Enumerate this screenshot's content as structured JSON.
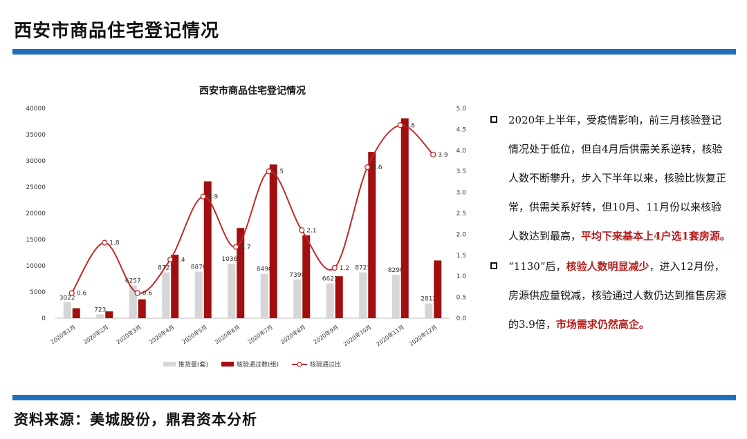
{
  "page": {
    "title": "西安市商品住宅登记情况",
    "source": "资料来源：美城股份，鼎君资本分析",
    "accent": "#1f6fbf"
  },
  "notes": [
    {
      "parts": [
        {
          "text": "2020年上半年，受疫情影响，前三月核验登记情况处于低位，但自4月后供需关系逆转，核验人数不断攀升，步入下半年以来，核验比恢复正常，供需关系好转，但10月、11月份以来核验人数达到最高，",
          "hl": false
        },
        {
          "text": "平均下来基本上4户选1套房源。",
          "hl": true
        }
      ]
    },
    {
      "parts": [
        {
          "text": "“1130”后，",
          "hl": false
        },
        {
          "text": "核验人数明显减少",
          "hl": true
        },
        {
          "text": "，进入12月份，房源供应量锐减，核验通过人数仍达到推售房源的3.9倍，",
          "hl": false
        },
        {
          "text": "市场需求仍然高企。",
          "hl": true
        }
      ]
    }
  ],
  "chart_data": {
    "type": "bar",
    "title": "西安市商品住宅登记情况",
    "categories": [
      "2020年1月",
      "2020年2月",
      "2020年3月",
      "2020年4月",
      "2020年5月",
      "2020年6月",
      "2020年7月",
      "2020年8月",
      "2020年9月",
      "2020年10月",
      "2020年11月",
      "2020年12月"
    ],
    "ylim": [
      0,
      40000
    ],
    "yticks": [
      "0",
      "5000",
      "10000",
      "15000",
      "20000",
      "25000",
      "30000",
      "35000",
      "40000"
    ],
    "y2lim": [
      0,
      5.0
    ],
    "y2ticks": [
      "0.0",
      "0.5",
      "1.0",
      "1.5",
      "2.0",
      "2.5",
      "3.0",
      "3.5",
      "4.0",
      "4.5",
      "5.0"
    ],
    "series": [
      {
        "name": "推货量(套)",
        "kind": "bar",
        "color": "#d6d6d6",
        "values": [
          3022,
          723,
          6257,
          8723,
          8870,
          10362,
          8490,
          7390,
          6621,
          8727,
          8290,
          2812
        ],
        "labels": [
          "3022",
          "723",
          "6257",
          "8723",
          "8870",
          "10362",
          "8490",
          "7390",
          "6621",
          "8727",
          "8290",
          "2812"
        ]
      },
      {
        "name": "核验通过数(组)",
        "kind": "bar",
        "color": "#a10f10",
        "values": [
          1900,
          1300,
          3600,
          12100,
          26100,
          17200,
          29300,
          15800,
          8000,
          31700,
          38100,
          11000
        ]
      },
      {
        "name": "核验通过比",
        "kind": "line",
        "color": "#c0282a",
        "axis": "right",
        "values": [
          0.6,
          1.8,
          0.6,
          1.4,
          2.9,
          1.7,
          3.5,
          2.1,
          1.2,
          3.6,
          4.6,
          3.9
        ],
        "labels": [
          "0.6",
          "1.8",
          "0.6",
          "1.4",
          "2.9",
          "1.7",
          "3.5",
          "2.1",
          "1.2",
          "3.6",
          "4.6",
          "3.9"
        ]
      }
    ],
    "legend": "bottom",
    "grid": false
  }
}
